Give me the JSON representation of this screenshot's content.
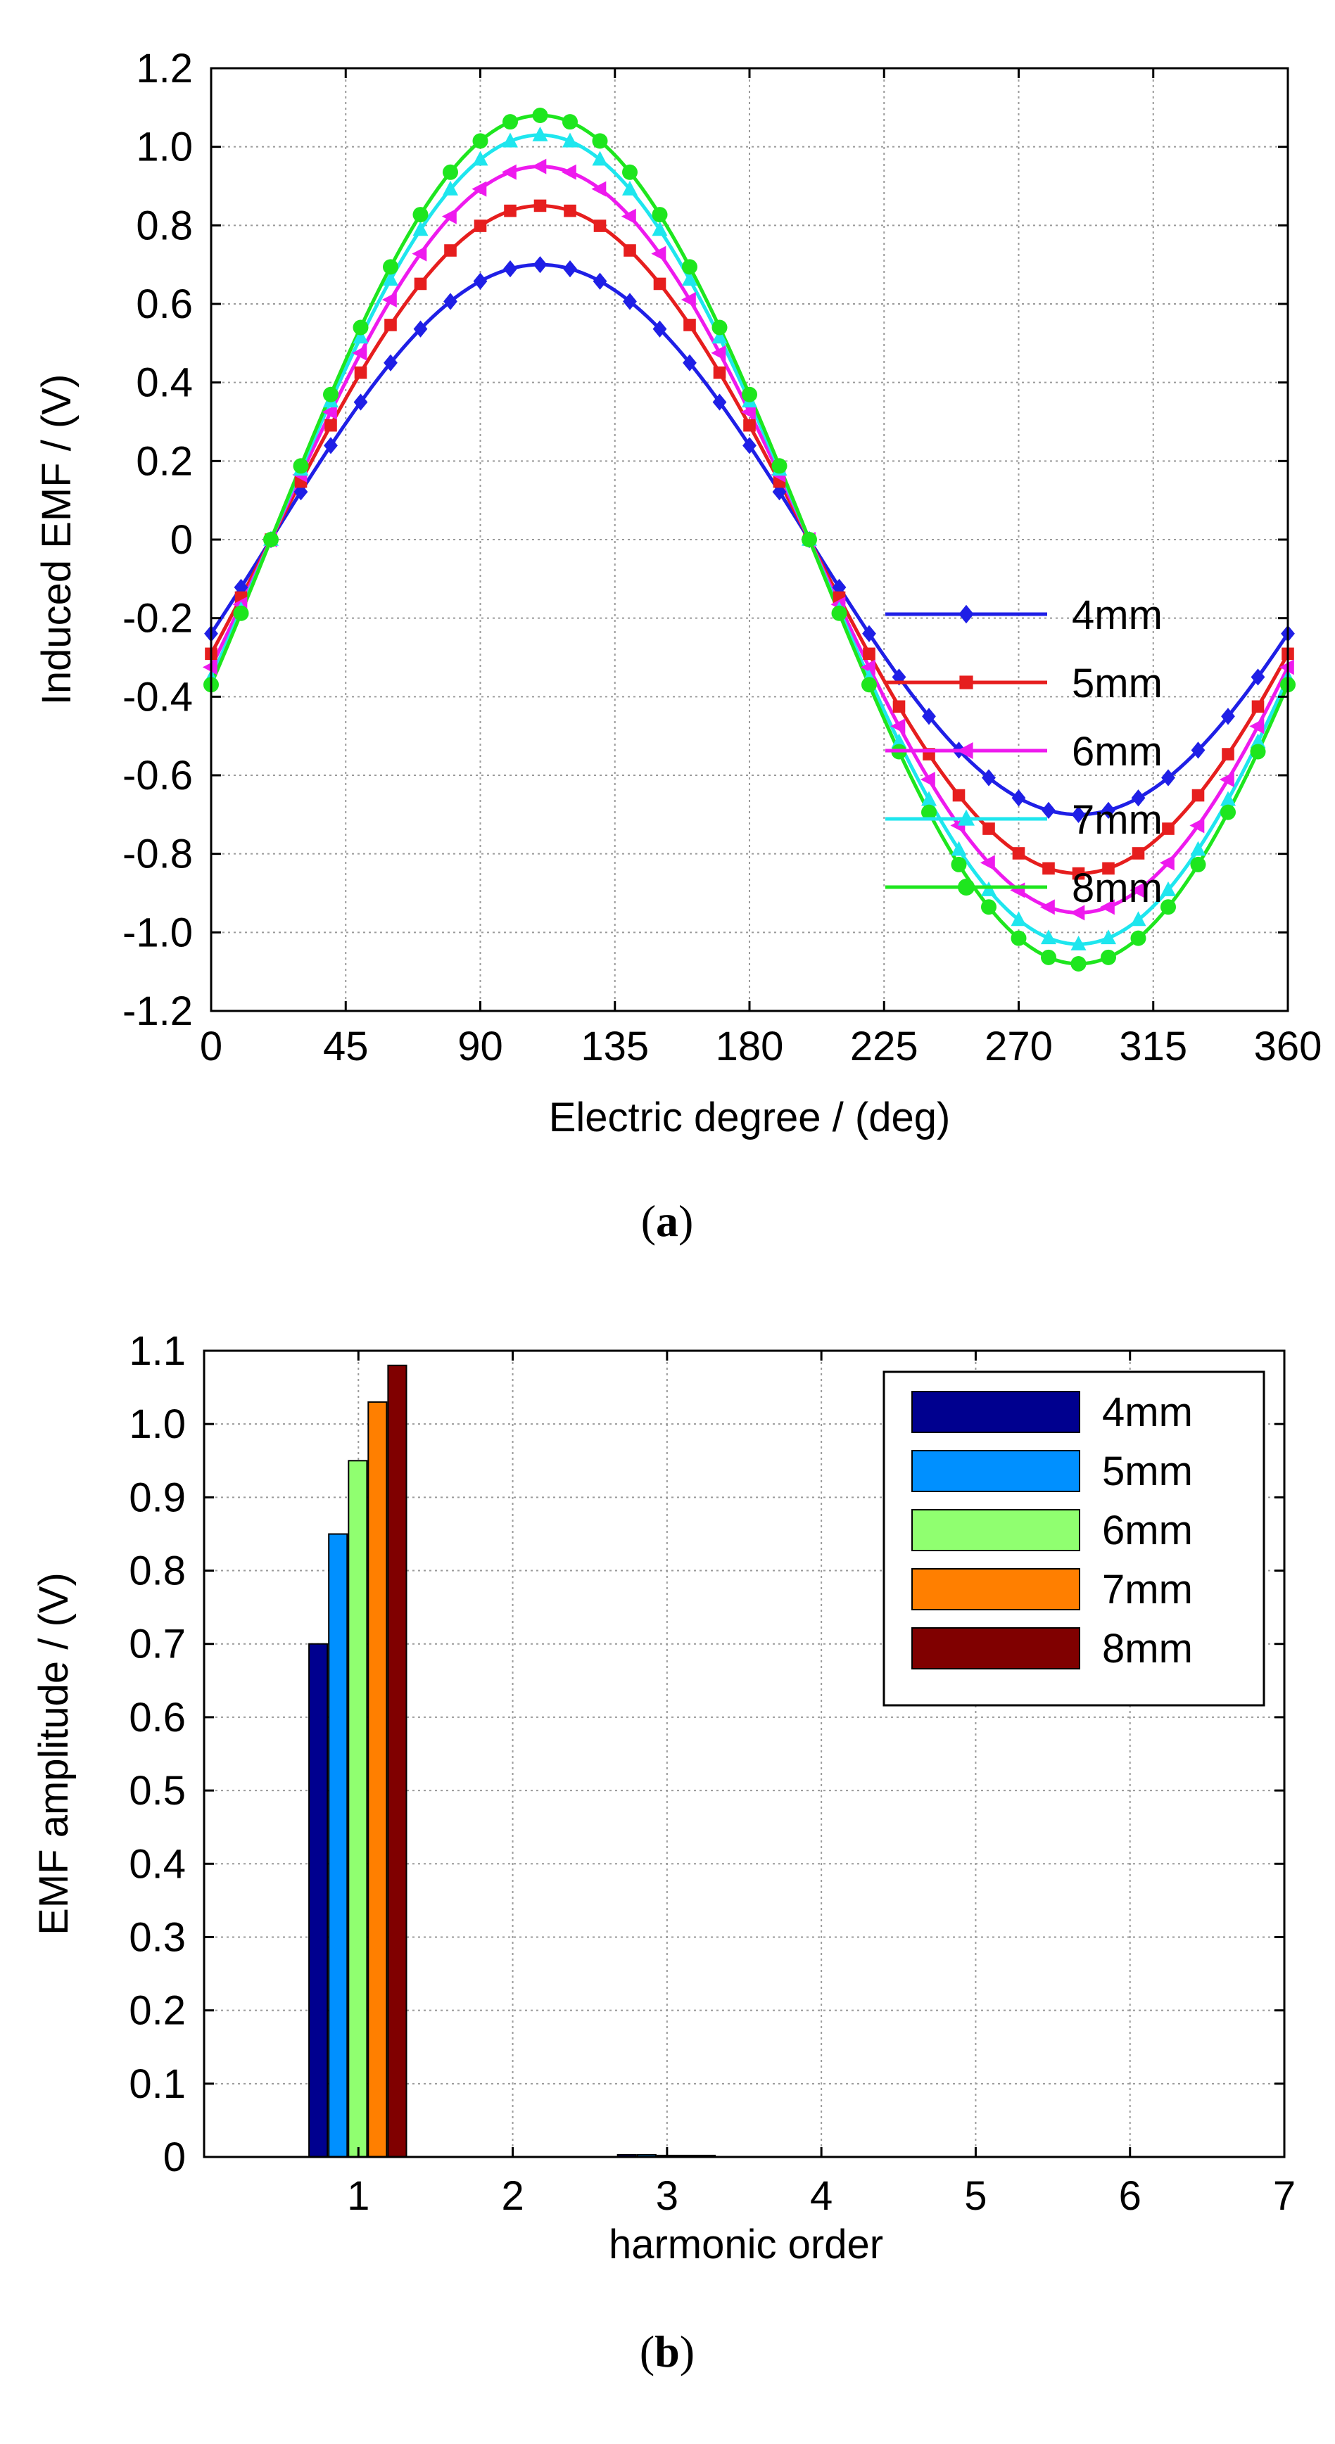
{
  "chart_data": [
    {
      "type": "line",
      "panel_label": "a",
      "xlabel": "Electric degree / (deg)",
      "ylabel": "Induced EMF / (V)",
      "xlim": [
        0,
        360
      ],
      "ylim": [
        -1.2,
        1.2
      ],
      "xticks": [
        0,
        45,
        90,
        135,
        180,
        225,
        270,
        315,
        360
      ],
      "yticks": [
        -1.2,
        -1.0,
        -0.8,
        -0.6,
        -0.4,
        -0.2,
        0,
        0.2,
        0.4,
        0.6,
        0.8,
        1.0,
        1.2
      ],
      "ytick_labels": [
        "-1.2",
        "-1.0",
        "-0.8",
        "-0.6",
        "-0.4",
        "-0.2",
        "0",
        "0.2",
        "0.4",
        "0.6",
        "0.8",
        "1.0",
        "1.2"
      ],
      "grid": true,
      "legend_position": "bottom-right",
      "waveform": "amplitude * sin(x - 20 deg), sampled every 10 deg",
      "phase_shift_deg": 20,
      "sample_step_deg": 10,
      "series": [
        {
          "name": "4mm",
          "amplitude": 0.7,
          "color": "#1f1fe6",
          "marker": "diamond"
        },
        {
          "name": "5mm",
          "amplitude": 0.85,
          "color": "#e61e1e",
          "marker": "square"
        },
        {
          "name": "6mm",
          "amplitude": 0.95,
          "color": "#ee1aee",
          "marker": "triangle-left"
        },
        {
          "name": "7mm",
          "amplitude": 1.03,
          "color": "#1ee6ee",
          "marker": "triangle-up"
        },
        {
          "name": "8mm",
          "amplitude": 1.08,
          "color": "#1ee61e",
          "marker": "circle"
        }
      ]
    },
    {
      "type": "bar",
      "panel_label": "b",
      "xlabel": "harmonic order",
      "ylabel": "EMF amplitude / (V)",
      "xlim": [
        0,
        7
      ],
      "ylim": [
        0,
        1.1
      ],
      "xticks": [
        1,
        2,
        3,
        4,
        5,
        6,
        7
      ],
      "yticks": [
        0,
        0.1,
        0.2,
        0.3,
        0.4,
        0.5,
        0.6,
        0.7,
        0.8,
        0.9,
        1.0,
        1.1
      ],
      "ytick_labels": [
        "0",
        "0.1",
        "0.2",
        "0.3",
        "0.4",
        "0.5",
        "0.6",
        "0.7",
        "0.8",
        "0.9",
        "1.0",
        "1.1"
      ],
      "grid": true,
      "legend_position": "top-right",
      "categories": [
        "1",
        "2",
        "3",
        "4",
        "5",
        "6",
        "7"
      ],
      "series": [
        {
          "name": "4mm",
          "color": "#00008f",
          "values": [
            0.7,
            0,
            0.003,
            0,
            0,
            0,
            0
          ]
        },
        {
          "name": "5mm",
          "color": "#0090ff",
          "values": [
            0.85,
            0,
            0.003,
            0,
            0,
            0,
            0
          ]
        },
        {
          "name": "6mm",
          "color": "#90ff70",
          "values": [
            0.95,
            0,
            0.002,
            0,
            0,
            0,
            0
          ]
        },
        {
          "name": "7mm",
          "color": "#ff7f00",
          "values": [
            1.03,
            0,
            0.002,
            0,
            0,
            0,
            0
          ]
        },
        {
          "name": "8mm",
          "color": "#800000",
          "values": [
            1.08,
            0,
            0.002,
            0,
            0,
            0,
            0
          ]
        }
      ]
    }
  ]
}
